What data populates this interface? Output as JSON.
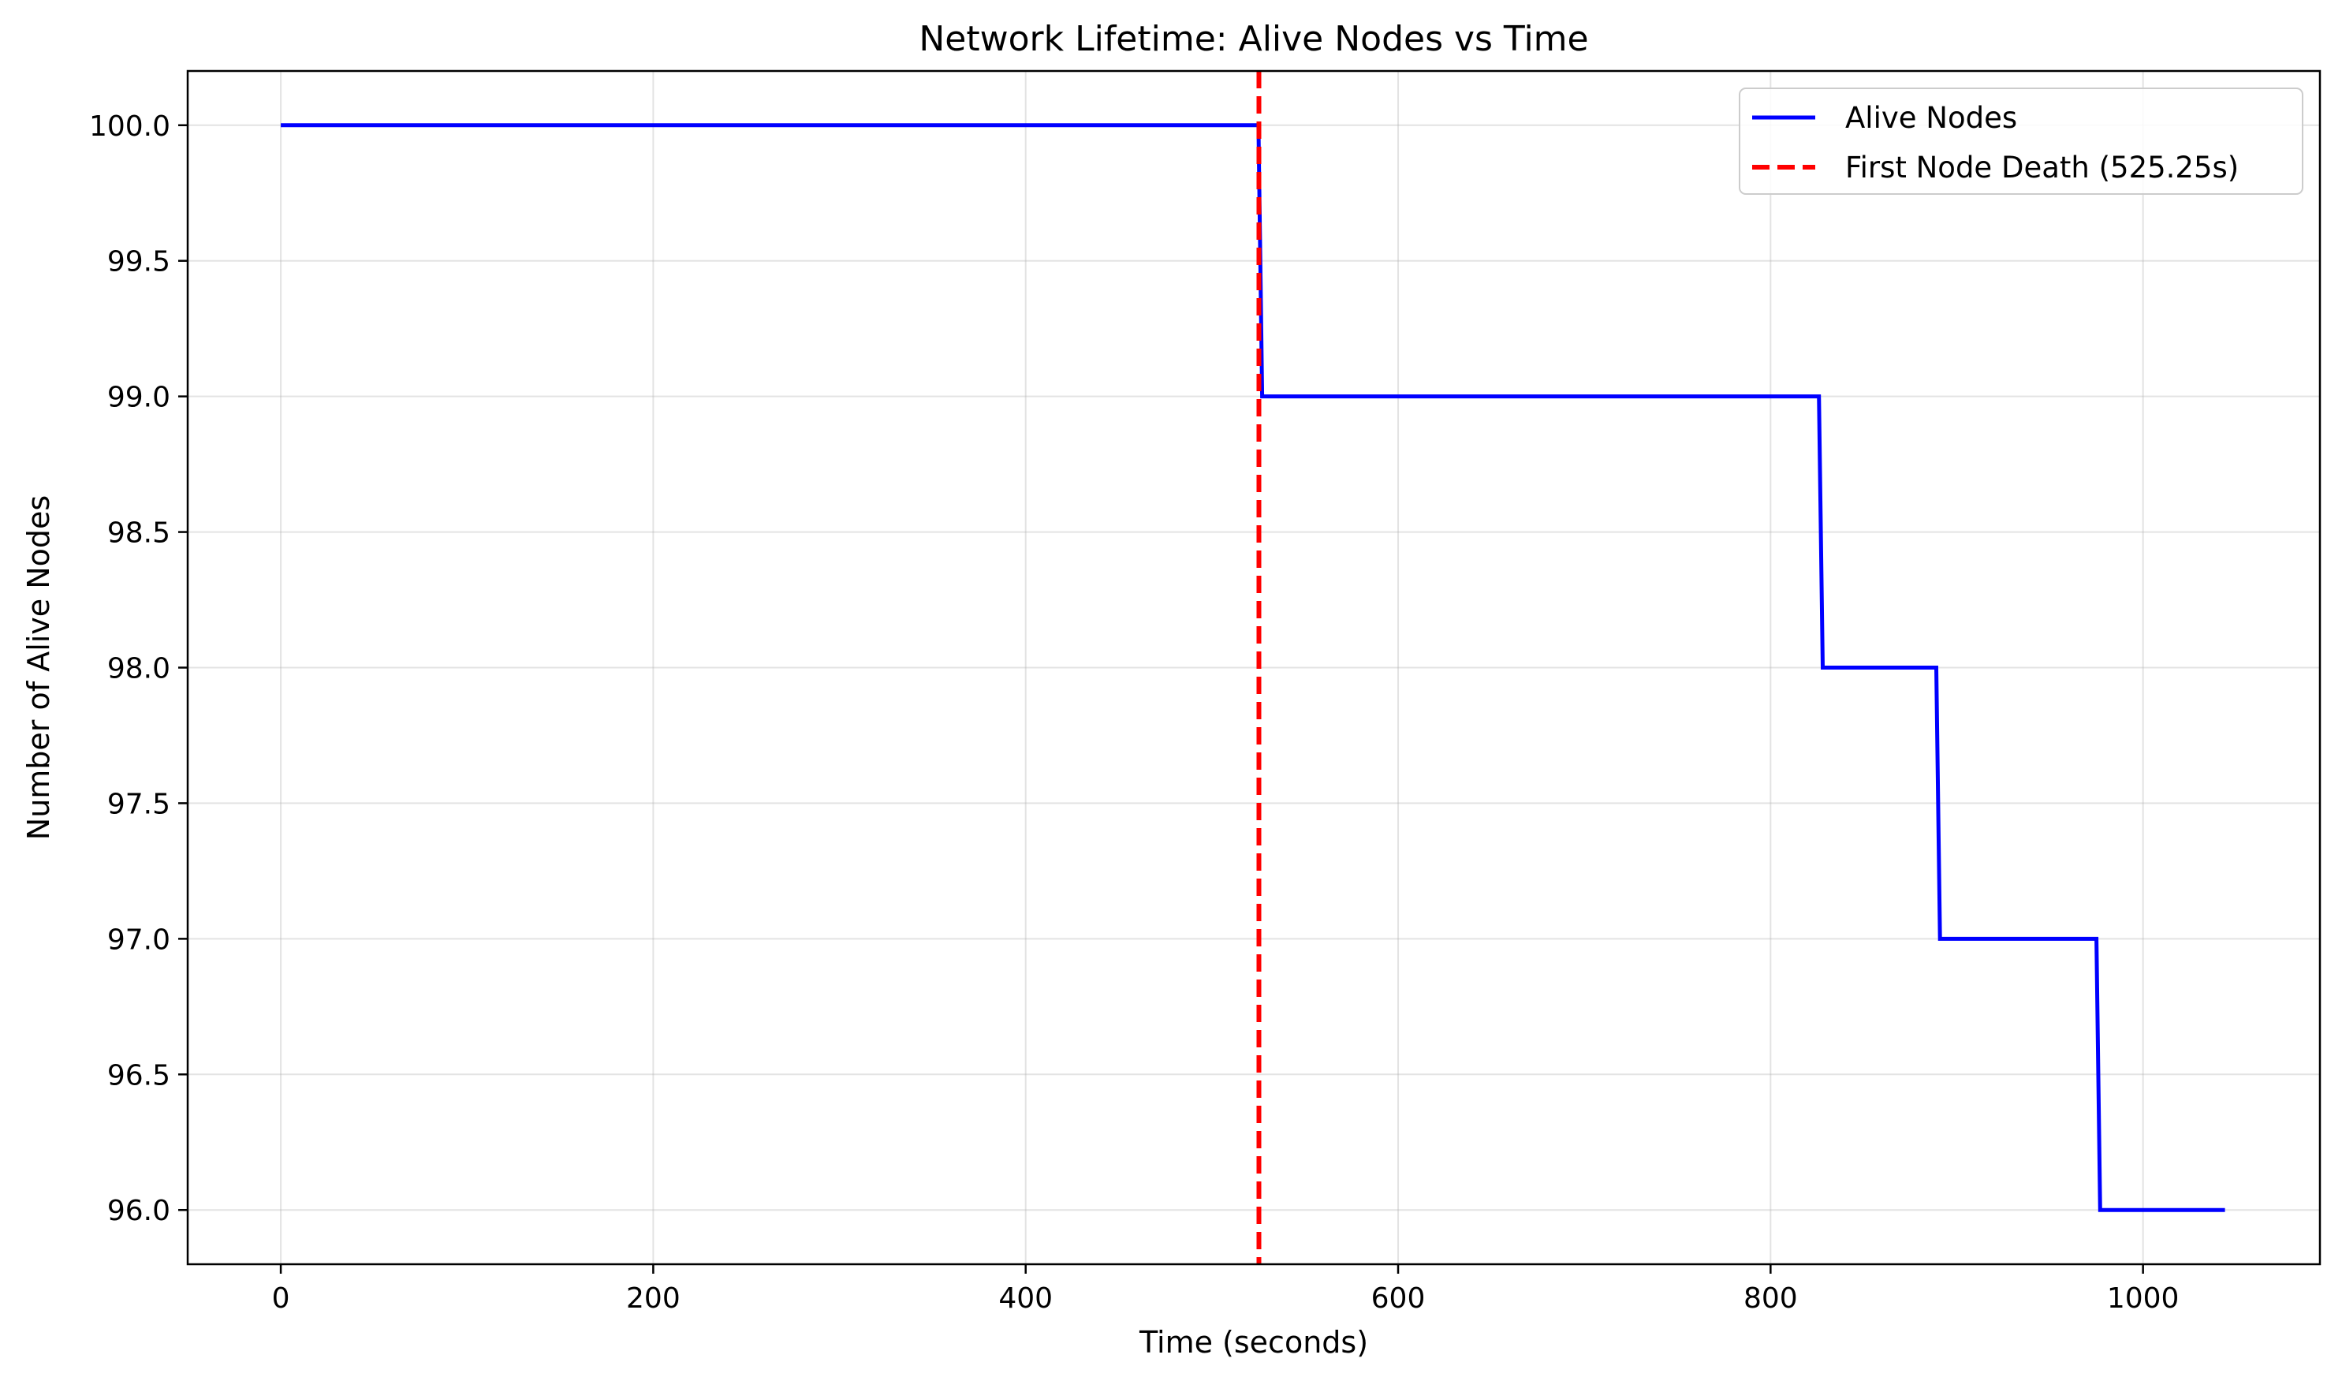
{
  "chart_data": {
    "type": "line",
    "title": "Network Lifetime: Alive Nodes vs Time",
    "xlabel": "Time (seconds)",
    "ylabel": "Number of Alive Nodes",
    "xlim": [
      -50,
      1095
    ],
    "ylim": [
      95.8,
      100.2
    ],
    "xticks": [
      0,
      200,
      400,
      600,
      800,
      1000
    ],
    "xtick_labels": [
      "0",
      "200",
      "400",
      "600",
      "800",
      "1000"
    ],
    "yticks": [
      96.0,
      96.5,
      97.0,
      97.5,
      98.0,
      98.5,
      99.0,
      99.5,
      100.0
    ],
    "ytick_labels": [
      "96.0",
      "96.5",
      "97.0",
      "97.5",
      "98.0",
      "98.5",
      "99.0",
      "99.5",
      "100.0"
    ],
    "grid": true,
    "legend_position": "top-right",
    "series": [
      {
        "name": "Alive Nodes",
        "color": "#0000ff",
        "style": "solid",
        "x": [
          0,
          525,
          527,
          826,
          828,
          889,
          891,
          975,
          977,
          1044
        ],
        "y": [
          100,
          100,
          99,
          99,
          98,
          98,
          97,
          97,
          96,
          96
        ]
      },
      {
        "name": "First Node Death (525.25s)",
        "color": "#ff0000",
        "style": "dashed",
        "vline_x": 525.25
      }
    ]
  }
}
